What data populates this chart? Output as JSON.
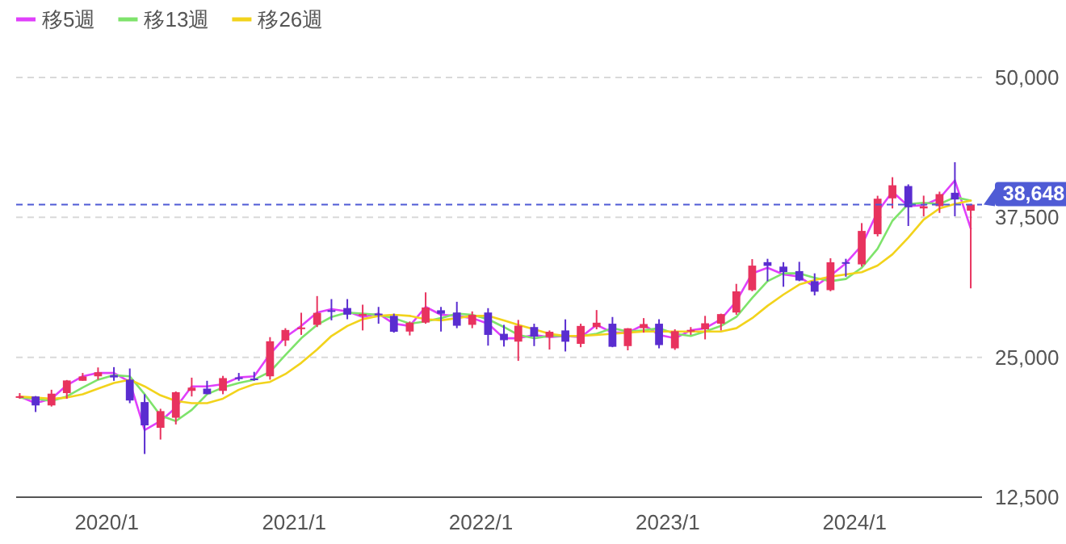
{
  "chart_data": {
    "type": "candlestick",
    "x": [
      "2019-07-15",
      "2019-08-15",
      "2019-09-15",
      "2019-10-15",
      "2019-11-15",
      "2019-12-15",
      "2020-01-15",
      "2020-02-15",
      "2020-03-15",
      "2020-04-15",
      "2020-05-15",
      "2020-06-15",
      "2020-07-15",
      "2020-08-15",
      "2020-09-15",
      "2020-10-15",
      "2020-11-15",
      "2020-12-15",
      "2021-01-15",
      "2021-02-15",
      "2021-03-15",
      "2021-04-15",
      "2021-05-15",
      "2021-06-15",
      "2021-07-15",
      "2021-08-15",
      "2021-09-15",
      "2021-10-15",
      "2021-11-15",
      "2021-12-15",
      "2022-01-15",
      "2022-02-15",
      "2022-03-15",
      "2022-04-15",
      "2022-05-15",
      "2022-06-15",
      "2022-07-15",
      "2022-08-15",
      "2022-09-15",
      "2022-10-15",
      "2022-11-15",
      "2022-12-15",
      "2023-01-15",
      "2023-02-15",
      "2023-03-15",
      "2023-04-15",
      "2023-05-15",
      "2023-06-15",
      "2023-07-15",
      "2023-08-15",
      "2023-09-15",
      "2023-10-15",
      "2023-11-15",
      "2023-12-15",
      "2024-01-15",
      "2024-02-15",
      "2024-03-15",
      "2024-04-15",
      "2024-05-15",
      "2024-06-15",
      "2024-07-15",
      "2024-08-15"
    ],
    "ohlc": [
      [
        21500,
        21800,
        21300,
        21520
      ],
      [
        21500,
        21540,
        20110,
        20700
      ],
      [
        20700,
        22100,
        20600,
        21750
      ],
      [
        21800,
        22970,
        21300,
        22930
      ],
      [
        22900,
        23600,
        22900,
        23290
      ],
      [
        23300,
        24090,
        23000,
        23660
      ],
      [
        23400,
        24120,
        22900,
        23200
      ],
      [
        23000,
        24000,
        20900,
        21140
      ],
      [
        21000,
        21700,
        16360,
        18920
      ],
      [
        18700,
        20400,
        17650,
        20190
      ],
      [
        19600,
        21950,
        19000,
        21880
      ],
      [
        22000,
        23180,
        21500,
        22290
      ],
      [
        22200,
        22900,
        21700,
        21710
      ],
      [
        22000,
        23340,
        21700,
        23140
      ],
      [
        23200,
        23600,
        22900,
        23190
      ],
      [
        23100,
        23700,
        22900,
        22980
      ],
      [
        23300,
        26800,
        23000,
        26430
      ],
      [
        26500,
        27600,
        26000,
        27440
      ],
      [
        27600,
        28980,
        27000,
        27660
      ],
      [
        27900,
        30470,
        27700,
        28970
      ],
      [
        29200,
        30200,
        28300,
        29180
      ],
      [
        29400,
        30200,
        28400,
        28810
      ],
      [
        28800,
        29700,
        27400,
        28860
      ],
      [
        28900,
        29500,
        28000,
        28790
      ],
      [
        28700,
        28900,
        27200,
        27280
      ],
      [
        27300,
        28200,
        26950,
        28090
      ],
      [
        28100,
        30800,
        28000,
        29450
      ],
      [
        29200,
        29500,
        27300,
        28890
      ],
      [
        29000,
        29960,
        27600,
        27820
      ],
      [
        27900,
        29100,
        27600,
        28790
      ],
      [
        29000,
        29390,
        26040,
        27000
      ],
      [
        27100,
        27900,
        25960,
        26530
      ],
      [
        26400,
        28340,
        24680,
        27820
      ],
      [
        27700,
        28000,
        26000,
        26850
      ],
      [
        26800,
        27400,
        25690,
        27280
      ],
      [
        27400,
        28390,
        25520,
        26390
      ],
      [
        26200,
        28000,
        25900,
        27800
      ],
      [
        27700,
        29220,
        27500,
        28090
      ],
      [
        28000,
        28600,
        25900,
        25940
      ],
      [
        26000,
        27600,
        25620,
        27590
      ],
      [
        27600,
        28500,
        27200,
        27970
      ],
      [
        28000,
        28400,
        25800,
        26090
      ],
      [
        25800,
        27500,
        25660,
        27330
      ],
      [
        27300,
        27700,
        27000,
        27450
      ],
      [
        27500,
        28700,
        26600,
        28040
      ],
      [
        28000,
        28900,
        27400,
        28860
      ],
      [
        29000,
        31560,
        28800,
        30890
      ],
      [
        31000,
        33770,
        30900,
        33190
      ],
      [
        33500,
        33800,
        31800,
        33170
      ],
      [
        33100,
        33500,
        31300,
        32620
      ],
      [
        32700,
        33530,
        31800,
        31860
      ],
      [
        31800,
        32500,
        30530,
        30860
      ],
      [
        31000,
        33850,
        30900,
        33490
      ],
      [
        33500,
        33800,
        32200,
        33460
      ],
      [
        33300,
        36990,
        33100,
        36290
      ],
      [
        36000,
        39430,
        35800,
        39170
      ],
      [
        39200,
        41090,
        38300,
        40370
      ],
      [
        40300,
        40450,
        36730,
        38410
      ],
      [
        38300,
        39440,
        37600,
        38490
      ],
      [
        38500,
        39800,
        37900,
        39580
      ],
      [
        39700,
        42430,
        37600,
        39100
      ],
      [
        38100,
        38700,
        31160,
        38648
      ]
    ],
    "colors": [
      "#e8335e",
      "#5a2dd0",
      "#e8335e",
      "#e8335e",
      "#e8335e",
      "#e8335e",
      "#5a2dd0",
      "#5a2dd0",
      "#5a2dd0",
      "#e8335e",
      "#e8335e",
      "#e8335e",
      "#5a2dd0",
      "#e8335e",
      "#5a2dd0",
      "#5a2dd0",
      "#e8335e",
      "#e8335e",
      "#e8335e",
      "#e8335e",
      "#5a2dd0",
      "#5a2dd0",
      "#e8335e",
      "#5a2dd0",
      "#5a2dd0",
      "#e8335e",
      "#e8335e",
      "#5a2dd0",
      "#5a2dd0",
      "#e8335e",
      "#5a2dd0",
      "#5a2dd0",
      "#e8335e",
      "#5a2dd0",
      "#e8335e",
      "#5a2dd0",
      "#e8335e",
      "#e8335e",
      "#5a2dd0",
      "#e8335e",
      "#e8335e",
      "#5a2dd0",
      "#e8335e",
      "#e8335e",
      "#e8335e",
      "#e8335e",
      "#e8335e",
      "#e8335e",
      "#5a2dd0",
      "#5a2dd0",
      "#5a2dd0",
      "#5a2dd0",
      "#e8335e",
      "#5a2dd0",
      "#e8335e",
      "#e8335e",
      "#e8335e",
      "#5a2dd0",
      "#e8335e",
      "#e8335e",
      "#5a2dd0",
      "#e8335e"
    ],
    "series": [
      {
        "name": "移5週",
        "type": "line",
        "color": "#e040fb",
        "values": [
          21500,
          20900,
          21300,
          22500,
          23300,
          23600,
          23600,
          22800,
          18500,
          19300,
          20500,
          22400,
          22400,
          22600,
          23200,
          23300,
          25300,
          26800,
          27800,
          29000,
          29300,
          29100,
          28600,
          28900,
          28000,
          27800,
          29500,
          28800,
          28700,
          28500,
          28000,
          26700,
          26700,
          27000,
          26800,
          26900,
          26800,
          27900,
          27200,
          27200,
          27900,
          27000,
          26700,
          27400,
          27600,
          28400,
          30000,
          32500,
          33000,
          32400,
          32200,
          31300,
          32300,
          33400,
          35000,
          38000,
          39800,
          38500,
          38600,
          39200,
          40800,
          36500
        ]
      },
      {
        "name": "移13週",
        "type": "line",
        "color": "#7ee36b",
        "values": [
          21400,
          21300,
          21100,
          21500,
          22300,
          23000,
          23400,
          23300,
          21700,
          19800,
          19300,
          20300,
          21700,
          22300,
          22700,
          23000,
          23700,
          25200,
          26700,
          27900,
          28600,
          29000,
          28900,
          28800,
          28500,
          28000,
          28200,
          28500,
          28900,
          28800,
          28400,
          27700,
          27000,
          26700,
          26900,
          26900,
          26900,
          27100,
          27600,
          27300,
          27400,
          27600,
          27100,
          26900,
          27300,
          27800,
          28600,
          30300,
          31800,
          32500,
          32500,
          32100,
          31800,
          32000,
          33000,
          34700,
          37200,
          38700,
          38800,
          38700,
          39300,
          39000
        ]
      },
      {
        "name": "移26週",
        "type": "line",
        "color": "#f2d31c",
        "values": [
          21500,
          21400,
          21300,
          21400,
          21700,
          22200,
          22700,
          23000,
          22400,
          21600,
          21100,
          20900,
          20900,
          21300,
          22100,
          22600,
          22800,
          23500,
          24500,
          25700,
          26900,
          27800,
          28400,
          28700,
          28800,
          28700,
          28400,
          28300,
          28500,
          28700,
          28700,
          28300,
          27900,
          27500,
          27100,
          26900,
          26900,
          27000,
          27100,
          27200,
          27300,
          27300,
          27300,
          27300,
          27300,
          27300,
          27600,
          28500,
          29600,
          30600,
          31500,
          31900,
          32200,
          32400,
          32600,
          33200,
          34200,
          35700,
          37300,
          38300,
          38700,
          39000
        ]
      }
    ],
    "xlim": [
      "2019-07-08",
      "2024-09-06"
    ],
    "xticks": [
      {
        "value": "2020-01-01",
        "label": "2020/1"
      },
      {
        "value": "2021-01-01",
        "label": "2021/1"
      },
      {
        "value": "2022-01-01",
        "label": "2022/1"
      },
      {
        "value": "2023-01-01",
        "label": "2023/1"
      },
      {
        "value": "2024-01-01",
        "label": "2024/1"
      }
    ],
    "ylim": [
      12500,
      50000
    ],
    "yticks": [
      {
        "value": 12500,
        "label": "12,500"
      },
      {
        "value": 25000,
        "label": "25,000"
      },
      {
        "value": 37500,
        "label": "37,500"
      },
      {
        "value": 50000,
        "label": "50,000"
      }
    ],
    "ref_lines": [
      {
        "axis": "y",
        "value": 38648,
        "label": "38,648",
        "color": "#4f5bd5",
        "line_style": "dashed"
      }
    ],
    "grid": "y",
    "legend": "top left"
  }
}
